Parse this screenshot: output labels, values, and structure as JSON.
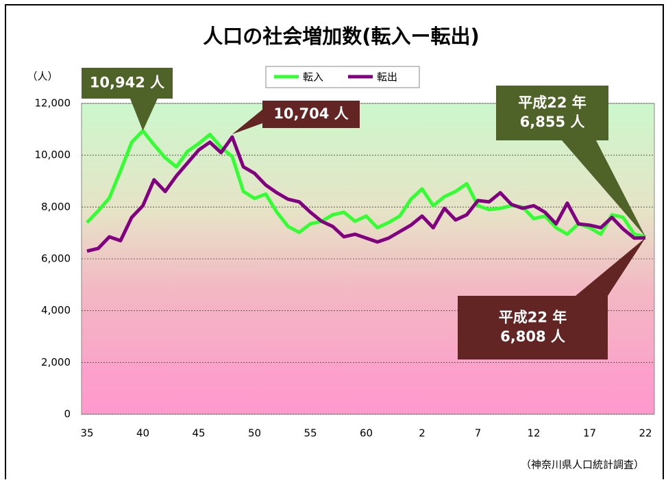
{
  "chart_data": {
    "type": "line",
    "title": "人口の社会増加数(転入ー転出)",
    "y_label": "（人）",
    "source": "（神奈川県人口統計調査）",
    "categories": [
      "35",
      null,
      null,
      null,
      null,
      "40",
      null,
      null,
      null,
      null,
      "45",
      null,
      null,
      null,
      null,
      "50",
      null,
      null,
      null,
      null,
      "55",
      null,
      null,
      null,
      null,
      "60",
      null,
      null,
      null,
      null,
      "2",
      null,
      null,
      null,
      null,
      "7",
      null,
      null,
      null,
      null,
      "12",
      null,
      null,
      null,
      null,
      "17",
      null,
      null,
      null,
      null,
      "22"
    ],
    "series": [
      {
        "name": "転入",
        "color": "#33ff33",
        "values": [
          7400,
          7850,
          8350,
          9400,
          10500,
          10942,
          10400,
          9900,
          9550,
          10150,
          10450,
          10800,
          10300,
          9950,
          8600,
          8330,
          8500,
          7800,
          7250,
          7020,
          7350,
          7450,
          7700,
          7800,
          7450,
          7650,
          7200,
          7400,
          7650,
          8300,
          8700,
          8050,
          8400,
          8600,
          8900,
          8050,
          7900,
          7950,
          8050,
          8000,
          7550,
          7650,
          7200,
          6950,
          7350,
          7200,
          6950,
          7700,
          7600,
          6950,
          6855
        ]
      },
      {
        "name": "転出",
        "color": "#800080",
        "values": [
          6300,
          6400,
          6850,
          6700,
          7600,
          8050,
          9050,
          8600,
          9200,
          9700,
          10200,
          10500,
          10100,
          10704,
          9550,
          9300,
          8850,
          8550,
          8300,
          8200,
          7800,
          7450,
          7250,
          6850,
          6950,
          6800,
          6650,
          6800,
          7050,
          7300,
          7650,
          7200,
          7950,
          7500,
          7700,
          8250,
          8200,
          8550,
          8100,
          7950,
          8050,
          7800,
          7350,
          8150,
          7350,
          7300,
          7200,
          7600,
          7150,
          6800,
          6808
        ]
      }
    ],
    "ylim": [
      0,
      12000
    ],
    "yticks": [
      0,
      {
        "value": 2000,
        "label": "2,000"
      },
      {
        "value": 4000,
        "label": "4,000"
      },
      {
        "value": 6000,
        "label": "6,000"
      },
      {
        "value": 8000,
        "label": "8,000"
      },
      {
        "value": 10000,
        "label": "10,000"
      },
      {
        "value": 12000,
        "label": "12,000"
      }
    ],
    "grid": true,
    "annotations": [
      {
        "lines": [
          "10,942 人"
        ]
      },
      {
        "lines": [
          "10,704 人"
        ]
      },
      {
        "lines": [
          "平成22 年",
          "6,855 人"
        ]
      },
      {
        "lines": [
          "平成22 年",
          "6,808 人"
        ]
      }
    ]
  }
}
